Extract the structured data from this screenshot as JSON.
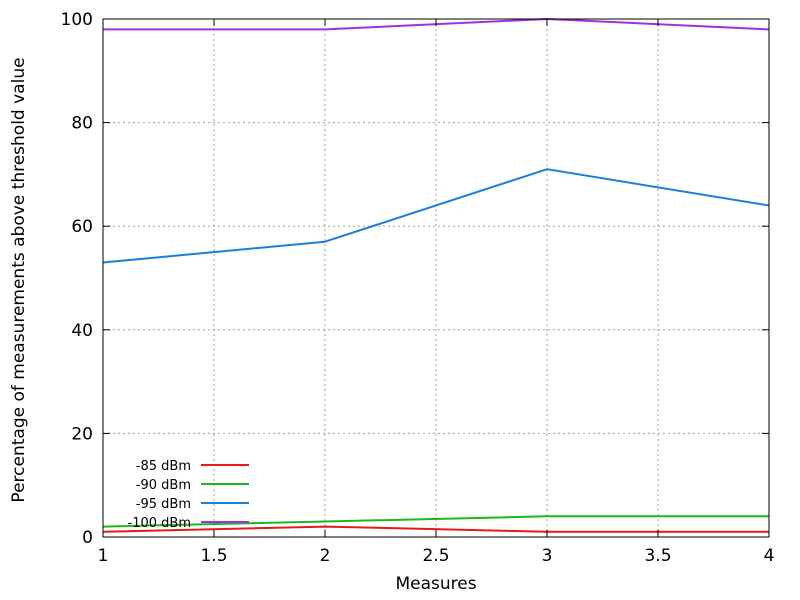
{
  "chart_data": {
    "type": "line",
    "title": "",
    "xlabel": "Measures",
    "ylabel": "Percentage of measurements above threshold value",
    "xlim": [
      1,
      4
    ],
    "ylim": [
      0,
      100
    ],
    "xticks": [
      "1",
      "1.5",
      "2",
      "2.5",
      "3",
      "3.5",
      "4"
    ],
    "yticks": [
      "0",
      "20",
      "40",
      "60",
      "80",
      "100"
    ],
    "grid": true,
    "legend_position": "bottom-left",
    "series": [
      {
        "name": "-85 dBm",
        "color": "#e41a1c",
        "x": [
          1,
          2,
          3,
          4
        ],
        "y": [
          1,
          2,
          1,
          1
        ]
      },
      {
        "name": "-90 dBm",
        "color": "#1cb81c",
        "x": [
          1,
          2,
          3,
          4
        ],
        "y": [
          2,
          3,
          4,
          4
        ]
      },
      {
        "name": "-95 dBm",
        "color": "#1a7fd9",
        "x": [
          1,
          2,
          3,
          4
        ],
        "y": [
          53,
          57,
          71,
          64
        ]
      },
      {
        "name": "-100 dBm",
        "color": "#a62ed9",
        "x": [
          1,
          2,
          3,
          4
        ],
        "y": [
          98,
          98,
          100,
          98
        ]
      }
    ]
  }
}
